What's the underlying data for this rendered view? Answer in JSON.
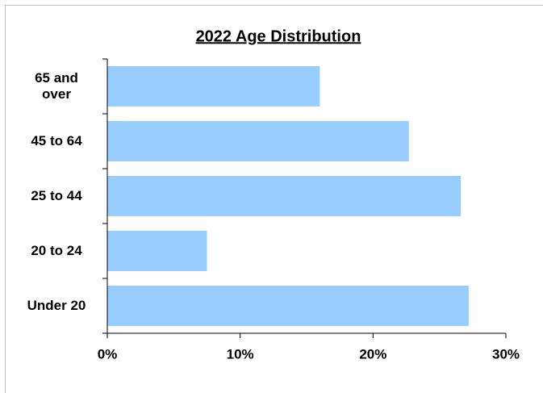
{
  "chart_data": {
    "type": "bar",
    "orientation": "horizontal",
    "title": "2022 Age Distribution",
    "categories": [
      "65 and over",
      "45 to 64",
      "25 to 44",
      "20 to 24",
      "Under 20"
    ],
    "values": [
      16.0,
      22.7,
      26.6,
      7.5,
      27.2
    ],
    "color": "#99ccff",
    "xlim": [
      0,
      30
    ],
    "xticks": [
      {
        "value": 0,
        "label": "0%"
      },
      {
        "value": 10,
        "label": "10%"
      },
      {
        "value": 20,
        "label": "20%"
      },
      {
        "value": 30,
        "label": "30%"
      }
    ]
  }
}
